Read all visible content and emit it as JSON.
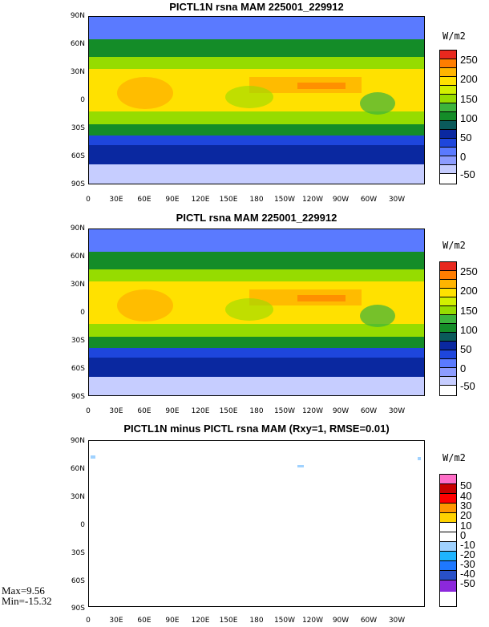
{
  "panels": [
    {
      "title": "PICTL1N rsna MAM 225001_229912",
      "units": "W/m2",
      "colorbar_labels": [
        "250",
        "200",
        "150",
        "100",
        "50",
        "0",
        "-50"
      ],
      "colorbar_colors": [
        "#e8281e",
        "#ff7d00",
        "#ffb400",
        "#ffe100",
        "#d2f000",
        "#96dc00",
        "#3cb43c",
        "#148c28",
        "#0a5a5a",
        "#0a28a0",
        "#1e46dc",
        "#5a7aff",
        "#8c9cff",
        "#c6cdff",
        "#ffffff"
      ]
    },
    {
      "title": "PICTL rsna MAM 225001_229912",
      "units": "W/m2",
      "colorbar_labels": [
        "250",
        "200",
        "150",
        "100",
        "50",
        "0",
        "-50"
      ],
      "colorbar_colors": [
        "#e8281e",
        "#ff7d00",
        "#ffb400",
        "#ffe100",
        "#d2f000",
        "#96dc00",
        "#3cb43c",
        "#148c28",
        "#0a5a5a",
        "#0a28a0",
        "#1e46dc",
        "#5a7aff",
        "#8c9cff",
        "#c6cdff",
        "#ffffff"
      ]
    },
    {
      "title": "PICTL1N minus PICTL rsna MAM (Rxy=1, RMSE=0.01)",
      "units": "W/m2",
      "colorbar_labels": [
        "50",
        "40",
        "30",
        "20",
        "10",
        "0",
        "-10",
        "-20",
        "-30",
        "-40",
        "-50"
      ],
      "colorbar_colors": [
        "#ff6ec8",
        "#c80000",
        "#ff0000",
        "#ff9600",
        "#ffd200",
        "#ffffff",
        "#ffffff",
        "#a0d2ff",
        "#1eb4ff",
        "#1e78ff",
        "#2850c8",
        "#8c28dc"
      ]
    }
  ],
  "lat_labels": [
    "90N",
    "60N",
    "30N",
    "0",
    "30S",
    "60S",
    "90S"
  ],
  "lon_labels": [
    "0",
    "30E",
    "60E",
    "90E",
    "120E",
    "150E",
    "180",
    "150W",
    "120W",
    "90W",
    "60W",
    "30W"
  ],
  "stats": {
    "max": "Max=9.56",
    "min": "Min=-15.32"
  }
}
